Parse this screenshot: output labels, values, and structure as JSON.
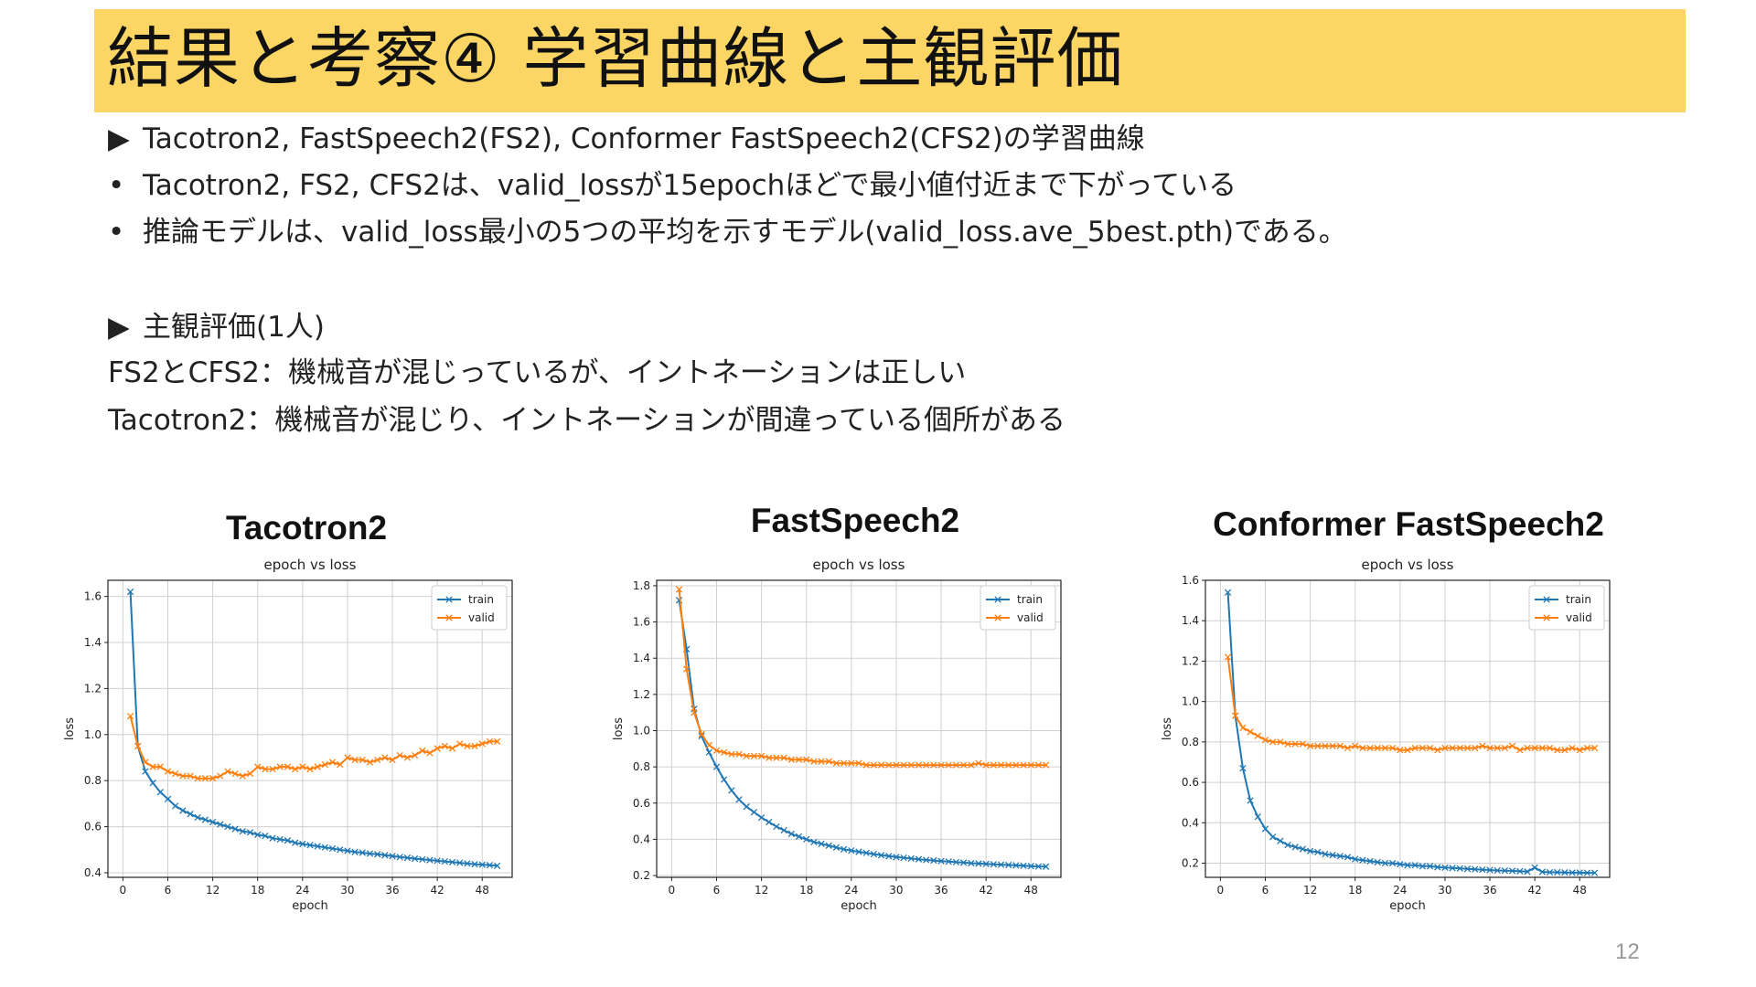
{
  "slide": {
    "title": "結果と考察④ 学習曲線と主観評価",
    "page_number": "12",
    "lines": [
      {
        "marker": "▶",
        "text": "Tacotron2, FastSpeech2(FS2), Conformer FastSpeech2(CFS2)の学習曲線"
      },
      {
        "marker": "•",
        "text": "Tacotron2, FS2, CFS2は、valid_lossが15epochほどで最小値付近まで下がっている"
      },
      {
        "marker": "•",
        "text": "推論モデルは、valid_loss最小の5つの平均を示すモデル(valid_loss.ave_5best.pth)である。"
      },
      {
        "marker": "▶",
        "text": "主観評価(1人)"
      },
      {
        "marker": "",
        "text": "FS2とCFS2：機械音が混じっているが、イントネーションは正しい"
      },
      {
        "marker": "",
        "text": "Tacotron2：機械音が混じり、イントネーションが間違っている個所がある"
      }
    ]
  },
  "chart_data": [
    {
      "type": "line",
      "heading": "Tacotron2",
      "title": "epoch vs loss",
      "xlabel": "epoch",
      "ylabel": "loss",
      "xlim": [
        -2,
        52
      ],
      "ylim": [
        0.38,
        1.67
      ],
      "xticks": [
        0,
        6,
        12,
        18,
        24,
        30,
        36,
        42,
        48
      ],
      "yticks": [
        0.4,
        0.6,
        0.8,
        1.0,
        1.2,
        1.4,
        1.6
      ],
      "ytick_labels": [
        "0.4",
        "0.6",
        "0.8",
        "1.0",
        "1.2",
        "1.4",
        "1.6"
      ],
      "grid": true,
      "legend": "top-right",
      "series": [
        {
          "name": "train",
          "color": "#1f77b4",
          "x": [
            1,
            2,
            3,
            4,
            5,
            6,
            7,
            8,
            9,
            10,
            11,
            12,
            13,
            14,
            15,
            16,
            17,
            18,
            19,
            20,
            21,
            22,
            23,
            24,
            25,
            26,
            27,
            28,
            29,
            30,
            31,
            32,
            33,
            34,
            35,
            36,
            37,
            38,
            39,
            40,
            41,
            42,
            43,
            44,
            45,
            46,
            47,
            48,
            49,
            50
          ],
          "y": [
            1.62,
            0.95,
            0.84,
            0.79,
            0.75,
            0.72,
            0.69,
            0.67,
            0.655,
            0.64,
            0.63,
            0.62,
            0.61,
            0.6,
            0.59,
            0.58,
            0.575,
            0.565,
            0.56,
            0.55,
            0.545,
            0.54,
            0.53,
            0.525,
            0.52,
            0.515,
            0.51,
            0.505,
            0.5,
            0.495,
            0.49,
            0.487,
            0.483,
            0.48,
            0.476,
            0.472,
            0.468,
            0.465,
            0.461,
            0.458,
            0.455,
            0.452,
            0.449,
            0.446,
            0.443,
            0.44,
            0.437,
            0.435,
            0.433,
            0.43
          ]
        },
        {
          "name": "valid",
          "color": "#ff7f0e",
          "x": [
            1,
            2,
            3,
            4,
            5,
            6,
            7,
            8,
            9,
            10,
            11,
            12,
            13,
            14,
            15,
            16,
            17,
            18,
            19,
            20,
            21,
            22,
            23,
            24,
            25,
            26,
            27,
            28,
            29,
            30,
            31,
            32,
            33,
            34,
            35,
            36,
            37,
            38,
            39,
            40,
            41,
            42,
            43,
            44,
            45,
            46,
            47,
            48,
            49,
            50
          ],
          "y": [
            1.08,
            0.95,
            0.88,
            0.86,
            0.86,
            0.84,
            0.83,
            0.82,
            0.82,
            0.81,
            0.81,
            0.81,
            0.82,
            0.84,
            0.83,
            0.82,
            0.83,
            0.86,
            0.85,
            0.85,
            0.86,
            0.86,
            0.85,
            0.86,
            0.85,
            0.86,
            0.87,
            0.88,
            0.87,
            0.9,
            0.89,
            0.89,
            0.88,
            0.89,
            0.9,
            0.89,
            0.91,
            0.9,
            0.91,
            0.93,
            0.92,
            0.94,
            0.95,
            0.94,
            0.96,
            0.95,
            0.95,
            0.96,
            0.97,
            0.97
          ]
        }
      ]
    },
    {
      "type": "line",
      "heading": "FastSpeech2",
      "title": "epoch vs loss",
      "xlabel": "epoch",
      "ylabel": "loss",
      "xlim": [
        -2,
        52
      ],
      "ylim": [
        0.19,
        1.83
      ],
      "xticks": [
        0,
        6,
        12,
        18,
        24,
        30,
        36,
        42,
        48
      ],
      "yticks": [
        0.2,
        0.4,
        0.6,
        0.8,
        1.0,
        1.2,
        1.4,
        1.6,
        1.8
      ],
      "ytick_labels": [
        "0.2",
        "0.4",
        "0.6",
        "0.8",
        "1.0",
        "1.2",
        "1.4",
        "1.6",
        "1.8"
      ],
      "grid": true,
      "legend": "top-right",
      "series": [
        {
          "name": "train",
          "color": "#1f77b4",
          "x": [
            1,
            2,
            3,
            4,
            5,
            6,
            7,
            8,
            9,
            10,
            11,
            12,
            13,
            14,
            15,
            16,
            17,
            18,
            19,
            20,
            21,
            22,
            23,
            24,
            25,
            26,
            27,
            28,
            29,
            30,
            31,
            32,
            33,
            34,
            35,
            36,
            37,
            38,
            39,
            40,
            41,
            42,
            43,
            44,
            45,
            46,
            47,
            48,
            49,
            50
          ],
          "y": [
            1.72,
            1.45,
            1.12,
            0.97,
            0.88,
            0.8,
            0.73,
            0.67,
            0.62,
            0.58,
            0.55,
            0.52,
            0.495,
            0.47,
            0.45,
            0.43,
            0.415,
            0.4,
            0.385,
            0.375,
            0.365,
            0.355,
            0.345,
            0.338,
            0.331,
            0.325,
            0.318,
            0.312,
            0.307,
            0.302,
            0.298,
            0.294,
            0.29,
            0.286,
            0.283,
            0.28,
            0.277,
            0.274,
            0.271,
            0.268,
            0.266,
            0.264,
            0.262,
            0.26,
            0.258,
            0.256,
            0.254,
            0.252,
            0.25,
            0.249
          ]
        },
        {
          "name": "valid",
          "color": "#ff7f0e",
          "x": [
            1,
            2,
            3,
            4,
            5,
            6,
            7,
            8,
            9,
            10,
            11,
            12,
            13,
            14,
            15,
            16,
            17,
            18,
            19,
            20,
            21,
            22,
            23,
            24,
            25,
            26,
            27,
            28,
            29,
            30,
            31,
            32,
            33,
            34,
            35,
            36,
            37,
            38,
            39,
            40,
            41,
            42,
            43,
            44,
            45,
            46,
            47,
            48,
            49,
            50
          ],
          "y": [
            1.78,
            1.34,
            1.1,
            0.98,
            0.92,
            0.89,
            0.88,
            0.87,
            0.87,
            0.86,
            0.86,
            0.86,
            0.85,
            0.85,
            0.85,
            0.84,
            0.84,
            0.84,
            0.83,
            0.83,
            0.83,
            0.82,
            0.82,
            0.82,
            0.82,
            0.81,
            0.81,
            0.81,
            0.81,
            0.81,
            0.81,
            0.81,
            0.81,
            0.81,
            0.81,
            0.81,
            0.81,
            0.81,
            0.81,
            0.81,
            0.82,
            0.81,
            0.81,
            0.81,
            0.81,
            0.81,
            0.81,
            0.81,
            0.81,
            0.81
          ]
        }
      ]
    },
    {
      "type": "line",
      "heading": "Conformer FastSpeech2",
      "title": "epoch vs loss",
      "xlabel": "epoch",
      "ylabel": "loss",
      "xlim": [
        -2,
        52
      ],
      "ylim": [
        0.13,
        1.6
      ],
      "xticks": [
        0,
        6,
        12,
        18,
        24,
        30,
        36,
        42,
        48
      ],
      "yticks": [
        0.2,
        0.4,
        0.6,
        0.8,
        1.0,
        1.2,
        1.4,
        1.6
      ],
      "ytick_labels": [
        "0.2",
        "0.4",
        "0.6",
        "0.8",
        "1.0",
        "1.2",
        "1.4",
        "1.6"
      ],
      "grid": true,
      "legend": "top-right",
      "series": [
        {
          "name": "train",
          "color": "#1f77b4",
          "x": [
            1,
            2,
            3,
            4,
            5,
            6,
            7,
            8,
            9,
            10,
            11,
            12,
            13,
            14,
            15,
            16,
            17,
            18,
            19,
            20,
            21,
            22,
            23,
            24,
            25,
            26,
            27,
            28,
            29,
            30,
            31,
            32,
            33,
            34,
            35,
            36,
            37,
            38,
            39,
            40,
            41,
            42,
            43,
            44,
            45,
            46,
            47,
            48,
            49,
            50
          ],
          "y": [
            1.54,
            0.93,
            0.67,
            0.51,
            0.43,
            0.37,
            0.33,
            0.31,
            0.29,
            0.28,
            0.27,
            0.26,
            0.255,
            0.245,
            0.24,
            0.235,
            0.23,
            0.22,
            0.215,
            0.21,
            0.205,
            0.2,
            0.2,
            0.195,
            0.19,
            0.19,
            0.185,
            0.185,
            0.18,
            0.178,
            0.176,
            0.174,
            0.172,
            0.17,
            0.168,
            0.166,
            0.164,
            0.163,
            0.162,
            0.16,
            0.158,
            0.178,
            0.157,
            0.155,
            0.155,
            0.154,
            0.153,
            0.153,
            0.152,
            0.152
          ]
        },
        {
          "name": "valid",
          "color": "#ff7f0e",
          "x": [
            1,
            2,
            3,
            4,
            5,
            6,
            7,
            8,
            9,
            10,
            11,
            12,
            13,
            14,
            15,
            16,
            17,
            18,
            19,
            20,
            21,
            22,
            23,
            24,
            25,
            26,
            27,
            28,
            29,
            30,
            31,
            32,
            33,
            34,
            35,
            36,
            37,
            38,
            39,
            40,
            41,
            42,
            43,
            44,
            45,
            46,
            47,
            48,
            49,
            50
          ],
          "y": [
            1.22,
            0.93,
            0.87,
            0.85,
            0.83,
            0.81,
            0.8,
            0.8,
            0.79,
            0.79,
            0.79,
            0.78,
            0.78,
            0.78,
            0.78,
            0.78,
            0.77,
            0.78,
            0.77,
            0.77,
            0.77,
            0.77,
            0.77,
            0.76,
            0.76,
            0.77,
            0.77,
            0.77,
            0.76,
            0.77,
            0.77,
            0.77,
            0.77,
            0.77,
            0.78,
            0.77,
            0.77,
            0.77,
            0.78,
            0.76,
            0.77,
            0.77,
            0.77,
            0.77,
            0.76,
            0.76,
            0.77,
            0.76,
            0.77,
            0.77
          ]
        }
      ]
    }
  ]
}
